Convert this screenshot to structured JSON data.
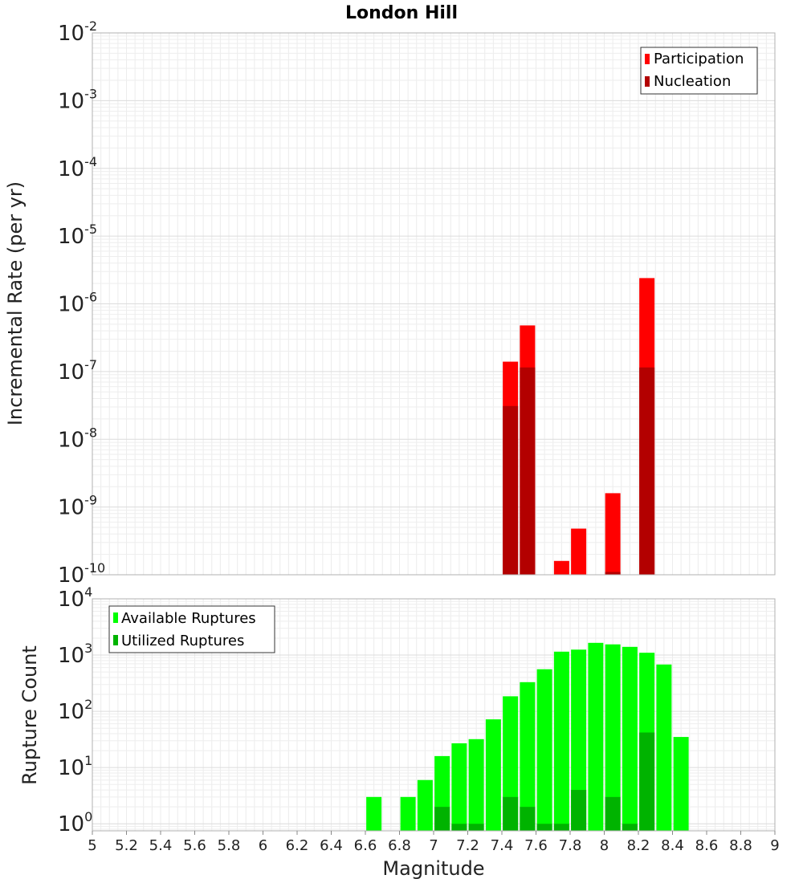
{
  "chart_data": [
    {
      "type": "bar",
      "title": "London Hill",
      "ylabel": "Incremental Rate (per yr)",
      "xlabel": "",
      "y_scale": "log",
      "xlim": [
        5,
        9
      ],
      "ylim": [
        1e-10,
        0.01
      ],
      "y_ticks": [
        {
          "value": 1e-10,
          "base": "10",
          "exp": "-10"
        },
        {
          "value": 1e-09,
          "base": "10",
          "exp": "-9"
        },
        {
          "value": 1e-08,
          "base": "10",
          "exp": "-8"
        },
        {
          "value": 1e-07,
          "base": "10",
          "exp": "-7"
        },
        {
          "value": 1e-06,
          "base": "10",
          "exp": "-6"
        },
        {
          "value": 1e-05,
          "base": "10",
          "exp": "-5"
        },
        {
          "value": 0.0001,
          "base": "10",
          "exp": "-4"
        },
        {
          "value": 0.001,
          "base": "10",
          "exp": "-3"
        },
        {
          "value": 0.01,
          "base": "10",
          "exp": "-2"
        }
      ],
      "grid": true,
      "legend_position": "top-right",
      "series": [
        {
          "name": "Participation",
          "color": "#ff0000",
          "points": [
            {
              "x": 7.45,
              "y": 1.4e-07
            },
            {
              "x": 7.55,
              "y": 4.8e-07
            },
            {
              "x": 7.75,
              "y": 1.6e-10
            },
            {
              "x": 7.85,
              "y": 4.8e-10
            },
            {
              "x": 8.05,
              "y": 1.6e-09
            },
            {
              "x": 8.25,
              "y": 2.4e-06
            }
          ]
        },
        {
          "name": "Nucleation",
          "color": "#b30000",
          "points": [
            {
              "x": 7.45,
              "y": 3.1e-08
            },
            {
              "x": 7.55,
              "y": 1.15e-07
            },
            {
              "x": 8.05,
              "y": 1.1e-10
            },
            {
              "x": 8.25,
              "y": 1.15e-07
            }
          ]
        }
      ]
    },
    {
      "type": "bar",
      "title": "",
      "xlabel": "Magnitude",
      "ylabel": "Rupture Count",
      "y_scale": "log",
      "xlim": [
        5,
        9
      ],
      "ylim": [
        0.75,
        10000
      ],
      "x_ticks": [
        "5",
        "5.2",
        "5.4",
        "5.6",
        "5.8",
        "6",
        "6.2",
        "6.4",
        "6.6",
        "6.8",
        "7",
        "7.2",
        "7.4",
        "7.6",
        "7.8",
        "8",
        "8.2",
        "8.4",
        "8.6",
        "8.8",
        "9"
      ],
      "y_ticks": [
        {
          "value": 1,
          "base": "10",
          "exp": "0"
        },
        {
          "value": 10,
          "base": "10",
          "exp": "1"
        },
        {
          "value": 100,
          "base": "10",
          "exp": "2"
        },
        {
          "value": 1000,
          "base": "10",
          "exp": "3"
        },
        {
          "value": 10000,
          "base": "10",
          "exp": "4"
        }
      ],
      "grid": true,
      "legend_position": "top-left",
      "series": [
        {
          "name": "Available Ruptures",
          "color": "#00ff00",
          "points": [
            {
              "x": 6.65,
              "y": 3
            },
            {
              "x": 6.85,
              "y": 3
            },
            {
              "x": 6.95,
              "y": 6
            },
            {
              "x": 7.05,
              "y": 16
            },
            {
              "x": 7.15,
              "y": 27
            },
            {
              "x": 7.25,
              "y": 32
            },
            {
              "x": 7.35,
              "y": 72
            },
            {
              "x": 7.45,
              "y": 185
            },
            {
              "x": 7.55,
              "y": 330
            },
            {
              "x": 7.65,
              "y": 560
            },
            {
              "x": 7.75,
              "y": 1150
            },
            {
              "x": 7.85,
              "y": 1250
            },
            {
              "x": 7.95,
              "y": 1650
            },
            {
              "x": 8.05,
              "y": 1550
            },
            {
              "x": 8.15,
              "y": 1400
            },
            {
              "x": 8.25,
              "y": 1100
            },
            {
              "x": 8.35,
              "y": 680
            },
            {
              "x": 8.45,
              "y": 35
            }
          ]
        },
        {
          "name": "Utilized Ruptures",
          "color": "#00b300",
          "points": [
            {
              "x": 7.05,
              "y": 2
            },
            {
              "x": 7.15,
              "y": 1
            },
            {
              "x": 7.25,
              "y": 1
            },
            {
              "x": 7.45,
              "y": 3
            },
            {
              "x": 7.55,
              "y": 2
            },
            {
              "x": 7.65,
              "y": 1
            },
            {
              "x": 7.75,
              "y": 1
            },
            {
              "x": 7.85,
              "y": 4
            },
            {
              "x": 8.05,
              "y": 3
            },
            {
              "x": 8.15,
              "y": 1
            },
            {
              "x": 8.25,
              "y": 42
            }
          ]
        }
      ]
    }
  ]
}
